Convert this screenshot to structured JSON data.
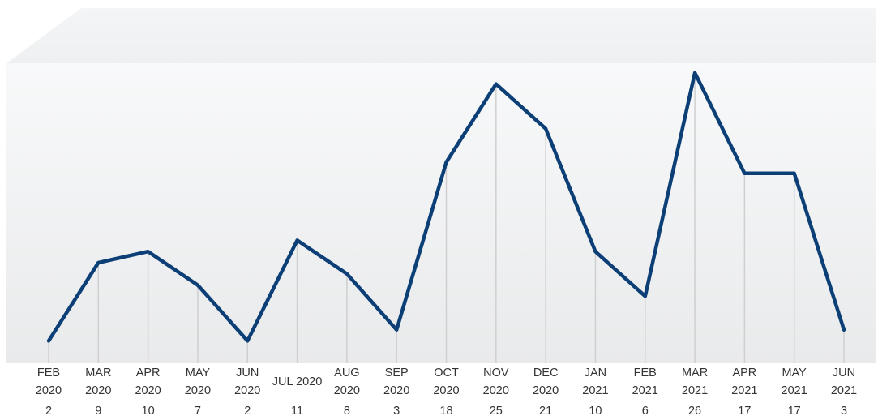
{
  "chart_data": {
    "type": "line",
    "categories": [
      [
        "FEB",
        "2020"
      ],
      [
        "MAR",
        "2020"
      ],
      [
        "APR",
        "2020"
      ],
      [
        "MAY",
        "2020"
      ],
      [
        "JUN",
        "2020"
      ],
      [
        "JUL 2020"
      ],
      [
        "AUG",
        "2020"
      ],
      [
        "SEP",
        "2020"
      ],
      [
        "OCT",
        "2020"
      ],
      [
        "NOV",
        "2020"
      ],
      [
        "DEC",
        "2020"
      ],
      [
        "JAN",
        "2021"
      ],
      [
        "FEB",
        "2021"
      ],
      [
        "MAR",
        "2021"
      ],
      [
        "APR",
        "2021"
      ],
      [
        "MAY",
        "2021"
      ],
      [
        "JUN",
        "2021"
      ]
    ],
    "values": [
      2,
      9,
      10,
      7,
      2,
      11,
      8,
      3,
      18,
      25,
      21,
      10,
      6,
      26,
      17,
      17,
      3
    ],
    "title": "",
    "xlabel": "",
    "ylabel": "",
    "ylim": [
      0,
      27
    ],
    "data_labels": "below-axis",
    "line_color": "#0d3f77",
    "drop_line_color": "#cfcfcf",
    "background": "light-gray-gradient-panel",
    "grid": false
  }
}
